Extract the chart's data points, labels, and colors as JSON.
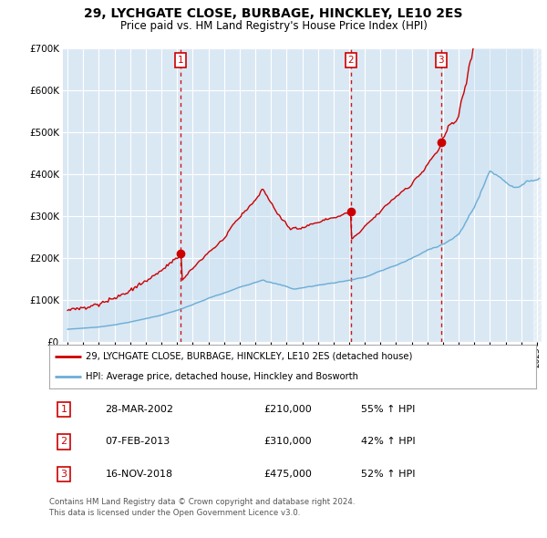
{
  "title": "29, LYCHGATE CLOSE, BURBAGE, HINCKLEY, LE10 2ES",
  "subtitle": "Price paid vs. HM Land Registry's House Price Index (HPI)",
  "legend_line1": "29, LYCHGATE CLOSE, BURBAGE, HINCKLEY, LE10 2ES (detached house)",
  "legend_line2": "HPI: Average price, detached house, Hinckley and Bosworth",
  "footer1": "Contains HM Land Registry data © Crown copyright and database right 2024.",
  "footer2": "This data is licensed under the Open Government Licence v3.0.",
  "sales": [
    {
      "num": 1,
      "date": "28-MAR-2002",
      "price": "£210,000",
      "pct": "55% ↑ HPI",
      "year": 2002.24,
      "price_val": 210000
    },
    {
      "num": 2,
      "date": "07-FEB-2013",
      "price": "£310,000",
      "pct": "42% ↑ HPI",
      "year": 2013.1,
      "price_val": 310000
    },
    {
      "num": 3,
      "date": "16-NOV-2018",
      "price": "£475,000",
      "pct": "52% ↑ HPI",
      "year": 2018.88,
      "price_val": 475000
    }
  ],
  "hpi_color": "#6baed6",
  "price_color": "#cc0000",
  "vline_color": "#cc0000",
  "bg_color": "#dae8f4",
  "fill_color": "#c6ddf0",
  "plot_bg": "#ffffff",
  "ylim": [
    0,
    700000
  ],
  "yticks": [
    0,
    100000,
    200000,
    300000,
    400000,
    500000,
    600000,
    700000
  ],
  "xlim_start": 1994.7,
  "xlim_end": 2025.3,
  "xtick_years": [
    1995,
    1996,
    1997,
    1998,
    1999,
    2000,
    2001,
    2002,
    2003,
    2004,
    2005,
    2006,
    2007,
    2008,
    2009,
    2010,
    2011,
    2012,
    2013,
    2014,
    2015,
    2016,
    2017,
    2018,
    2019,
    2020,
    2021,
    2022,
    2023,
    2024,
    2025
  ]
}
